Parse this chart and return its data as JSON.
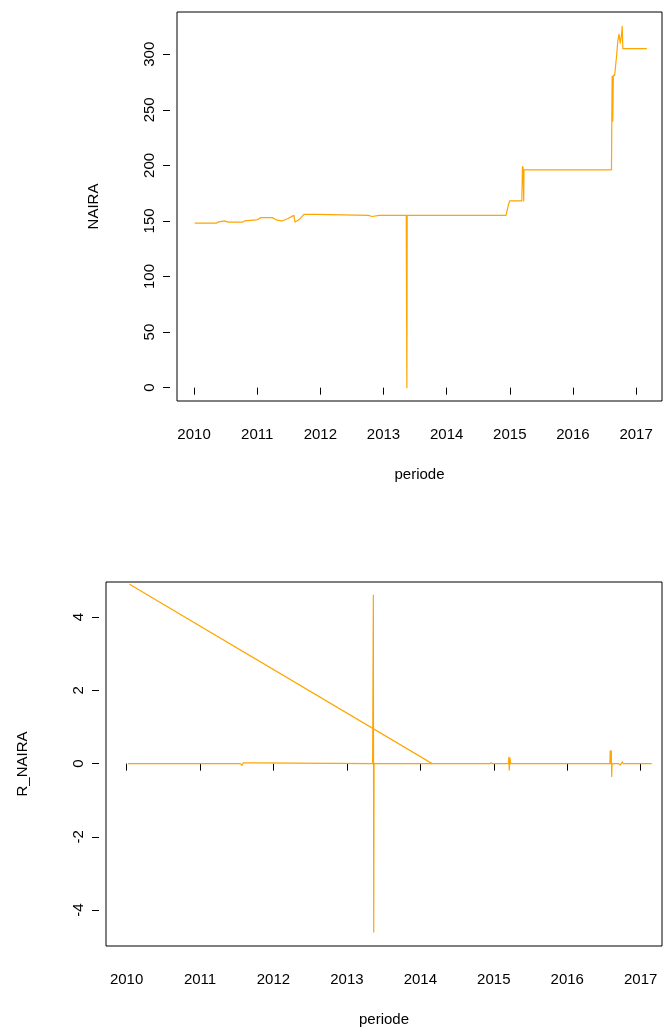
{
  "chart_data": [
    {
      "type": "line",
      "xlabel": "periode",
      "ylabel": "NAIRA",
      "xlim": [
        2009.73,
        2017.41
      ],
      "ylim": [
        -12,
        338
      ],
      "xticks": [
        2010,
        2011,
        2012,
        2013,
        2014,
        2015,
        2016,
        2017
      ],
      "yticks": [
        0,
        50,
        100,
        150,
        200,
        250,
        300
      ],
      "series": [
        {
          "color": "#ffa500",
          "x": [
            2010.01,
            2010.36,
            2010.38,
            2010.48,
            2010.54,
            2010.77,
            2010.8,
            2011.0,
            2011.06,
            2011.24,
            2011.3,
            2011.39,
            2011.48,
            2011.58,
            2011.6,
            2011.66,
            2011.74,
            2011.94,
            2012.76,
            2012.82,
            2012.93,
            2013.36,
            2013.365,
            2013.37,
            2013.375,
            2014.94,
            2014.98,
            2015.0,
            2015.19,
            2015.2,
            2015.21,
            2015.22,
            2015.225,
            2016.61,
            2016.62,
            2016.63,
            2016.64,
            2016.66,
            2016.69,
            2016.71,
            2016.73,
            2016.75,
            2016.77,
            2016.78,
            2016.79,
            2017.17
          ],
          "values": [
            148,
            148,
            149,
            150,
            149,
            149,
            150,
            151,
            153,
            153,
            151,
            150,
            152,
            155,
            149,
            151,
            156,
            156,
            155,
            154,
            155,
            155,
            78,
            0,
            155,
            155,
            165,
            168,
            168,
            199,
            198,
            168,
            196,
            196,
            280,
            240,
            281,
            281,
            298,
            312,
            318,
            310,
            318,
            325,
            305,
            305
          ]
        }
      ]
    },
    {
      "type": "line",
      "xlabel": "periode",
      "ylabel": "R_NAIRA",
      "xlim": [
        2009.72,
        2017.29
      ],
      "ylim": [
        -4.98,
        4.96
      ],
      "xticks": [
        2010,
        2011,
        2012,
        2013,
        2014,
        2015,
        2016,
        2017
      ],
      "yticks": [
        -4,
        -2,
        0,
        2,
        4
      ],
      "series": [
        {
          "color": "#ffa500",
          "x": [
            2010.04,
            2014.16
          ],
          "values": [
            4.9,
            0
          ]
        },
        {
          "color": "#ffa500",
          "x": [
            2010.02,
            2011.55,
            2011.57,
            2011.59,
            2011.65,
            2013.35,
            2013.36,
            2013.365,
            2013.37,
            2014.95,
            2014.96,
            2014.98,
            2015.2,
            2015.205,
            2015.21,
            2015.22,
            2015.23,
            2016.58,
            2016.585,
            2016.59,
            2016.6,
            2016.605,
            2016.61,
            2016.7,
            2016.72,
            2016.75,
            2016.76,
            2017.15
          ],
          "values": [
            0,
            0,
            -0.05,
            0.02,
            0.02,
            0,
            4.6,
            -4.6,
            0,
            0,
            0.02,
            0,
            0,
            0.18,
            -0.18,
            0.15,
            0,
            0,
            0.35,
            0,
            0.35,
            -0.35,
            0,
            0,
            -0.04,
            0.05,
            0,
            0
          ]
        }
      ]
    }
  ]
}
